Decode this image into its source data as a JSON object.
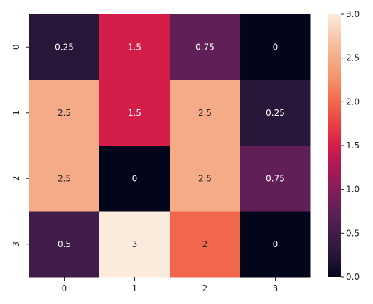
{
  "chart_data": {
    "type": "heatmap",
    "x_ticks": [
      "0",
      "1",
      "2",
      "3"
    ],
    "y_ticks": [
      "0",
      "1",
      "2",
      "3"
    ],
    "values": [
      [
        0.25,
        1.5,
        0.75,
        0
      ],
      [
        2.5,
        1.5,
        2.5,
        0.25
      ],
      [
        2.5,
        0,
        2.5,
        0.75
      ],
      [
        0.5,
        3,
        2,
        0
      ]
    ],
    "cell_labels": [
      [
        "0.25",
        "1.5",
        "0.75",
        "0"
      ],
      [
        "2.5",
        "1.5",
        "2.5",
        "0.25"
      ],
      [
        "2.5",
        "0",
        "2.5",
        "0.75"
      ],
      [
        "0.5",
        "3",
        "2",
        "0"
      ]
    ],
    "colorbar": {
      "min": 0,
      "max": 3,
      "ticks": [
        "0.0",
        "0.5",
        "1.0",
        "1.5",
        "2.0",
        "2.5",
        "3.0"
      ],
      "tick_values": [
        0,
        0.5,
        1,
        1.5,
        2,
        2.5,
        3
      ]
    },
    "colormap": "rocket",
    "title": "",
    "xlabel": "",
    "ylabel": ""
  }
}
